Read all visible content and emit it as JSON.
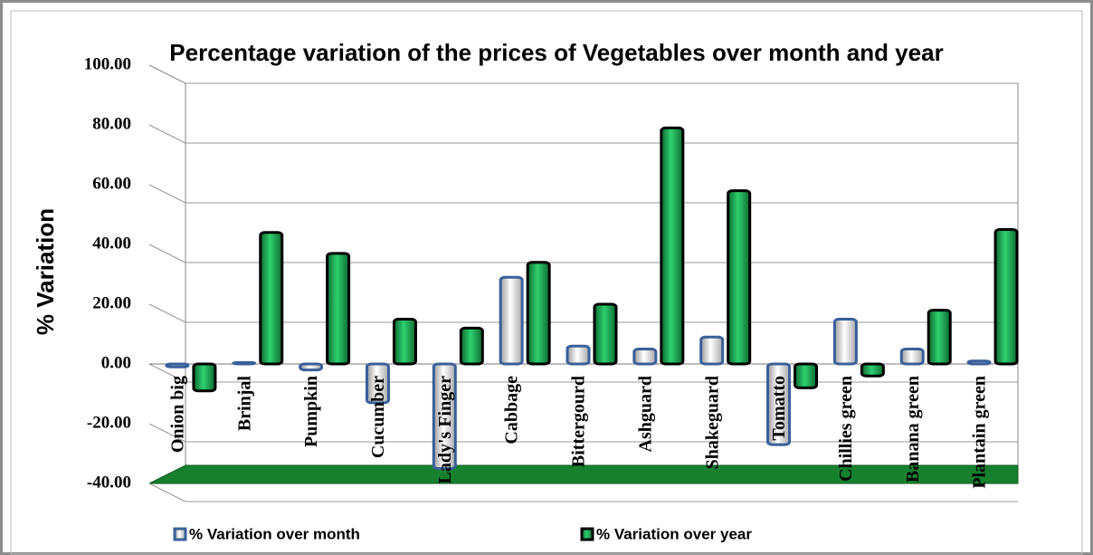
{
  "chart_data": {
    "type": "bar",
    "title": "Percentage variation of the prices of Vegetables over month and year",
    "y_label": "% Variation",
    "categories": [
      "Onion big",
      "Brinjal",
      "Pumpkin",
      "Cucumber",
      "Lady's Finger",
      "Cabbage",
      "Bittergourd",
      "Ashguard",
      "Shakeguard",
      "Tomatto",
      "Chillies green",
      "Banana green",
      "Plantain green"
    ],
    "series": [
      {
        "name": "% Variation over month",
        "color": "#d9d9d9",
        "values": [
          -1,
          0.5,
          -2,
          -13,
          -35,
          29,
          6,
          5,
          9,
          -27,
          15,
          5,
          1
        ]
      },
      {
        "name": "% Variation over year",
        "color": "#1fa850",
        "values": [
          -9,
          44,
          37,
          15,
          12,
          34,
          20,
          79,
          58,
          -8,
          -4,
          18,
          45
        ]
      }
    ],
    "ylim": [
      -40,
      100
    ],
    "yticks": [
      {
        "value": -40,
        "label": "-40.00"
      },
      {
        "value": -20,
        "label": "-20.00"
      },
      {
        "value": 0,
        "label": "0.00"
      },
      {
        "value": 20,
        "label": "20.00"
      },
      {
        "value": 40,
        "label": "40.00"
      },
      {
        "value": 60,
        "label": "60.00"
      },
      {
        "value": 80,
        "label": "80.00"
      },
      {
        "value": 100,
        "label": "100.00"
      }
    ],
    "grid": true
  }
}
